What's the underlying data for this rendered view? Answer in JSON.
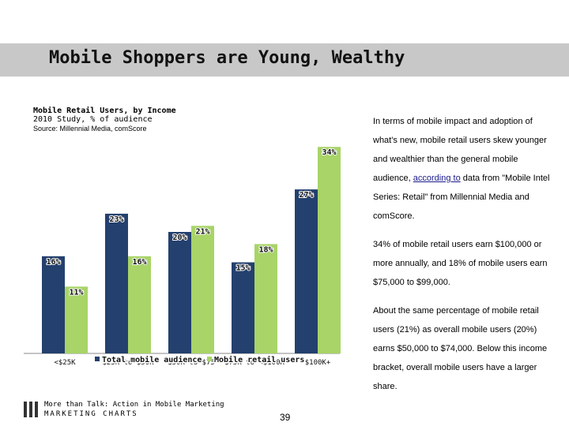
{
  "slide": {
    "title": "Mobile Shoppers are Young, Wealthy",
    "page_number": "39"
  },
  "chart_data": {
    "type": "bar",
    "title": "Mobile Retail Users, by Income",
    "subtitle": "2010 Study, % of audience",
    "source": "Source: Millennial Media, comScore",
    "categories": [
      "<$25K",
      "$25K to $50K",
      "$50K to $75",
      "$75K to <$100K",
      "$100K+"
    ],
    "series": [
      {
        "name": "Total mobile audience",
        "color": "#24406e",
        "values": [
          16,
          23,
          20,
          15,
          27
        ],
        "labels": [
          "16%",
          "23%",
          "20%",
          "15%",
          "27%"
        ]
      },
      {
        "name": "Mobile retail users",
        "color": "#a8d468",
        "values": [
          11,
          16,
          21,
          18,
          34
        ],
        "labels": [
          "11%",
          "16%",
          "21%",
          "18%",
          "34%"
        ]
      }
    ],
    "ylim": [
      0,
      40
    ],
    "grid": false,
    "legend": "bottom"
  },
  "body": {
    "para1_before": "In terms of mobile impact and adoption of what's new, mobile retail users skew younger and wealthier than the general mobile audience, ",
    "para1_link": "according to",
    "para1_after": " data from \"Mobile Intel Series: Retail\"  from Millennial Media and comScore.",
    "para2": "34% of mobile retail users earn $100,000 or more annually, and 18% of mobile users earn $75,000 to $99,000.",
    "para3": "About the same percentage of mobile retail users (21%) as overall mobile users (20%) earns $50,000 to $74,000. Below this income bracket, overall mobile users have a larger share."
  },
  "footer": {
    "tagline": "More than Talk: Action in Mobile Marketing",
    "brand": "MARKETING CHARTS"
  }
}
